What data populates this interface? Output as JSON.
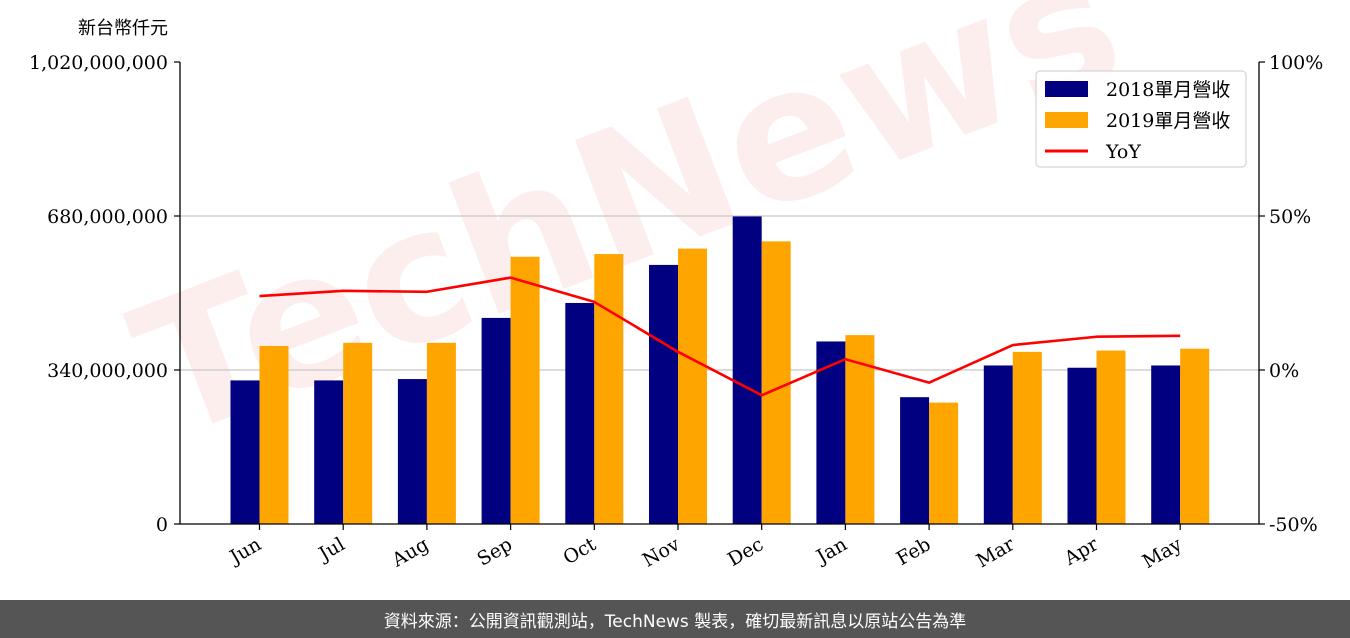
{
  "footer": {
    "source_text": "資料來源：公開資訊觀測站，TechNews 製表，確切最新訊息以原站公告為準"
  },
  "watermark": {
    "text": "TechNews"
  },
  "chart_data": {
    "type": "bar",
    "ylabel": "新台幣仟元",
    "categories": [
      "Jun",
      "Jul",
      "Aug",
      "Sep",
      "Oct",
      "Nov",
      "Dec",
      "Jan",
      "Feb",
      "Mar",
      "Apr",
      "May"
    ],
    "series": [
      {
        "name": "2018單月營收",
        "type": "bar",
        "axis": "left",
        "color": "#000080",
        "values": [
          317000000,
          317000000,
          320000000,
          455000000,
          488000000,
          572000000,
          679000000,
          403000000,
          280000000,
          350000000,
          345000000,
          350000000
        ]
      },
      {
        "name": "2019單月營收",
        "type": "bar",
        "axis": "left",
        "color": "#FFA500",
        "values": [
          393000000,
          400000000,
          400000000,
          590000000,
          596000000,
          608000000,
          624000000,
          417000000,
          268000000,
          380000000,
          383000000,
          387000000
        ]
      },
      {
        "name": "YoY",
        "type": "line",
        "axis": "right",
        "color": "#FF0000",
        "values": [
          24,
          25.7,
          25.4,
          30,
          22.1,
          5.9,
          -8.2,
          3.5,
          -4.1,
          8.1,
          10.8,
          11.1
        ]
      }
    ],
    "y_left": {
      "ylim": [
        0,
        1020000000
      ],
      "ticks": [
        0,
        340000000,
        680000000,
        1020000000
      ],
      "tick_labels": [
        "0",
        "340,000,000",
        "680,000,000",
        "1,020,000,000"
      ]
    },
    "y_right": {
      "ylim": [
        -50,
        100
      ],
      "ticks": [
        -50,
        0,
        50,
        100
      ],
      "tick_labels": [
        "-50%",
        "0%",
        "50%",
        "100%"
      ]
    },
    "grid": "horizontal",
    "legend_position": "top-right"
  }
}
